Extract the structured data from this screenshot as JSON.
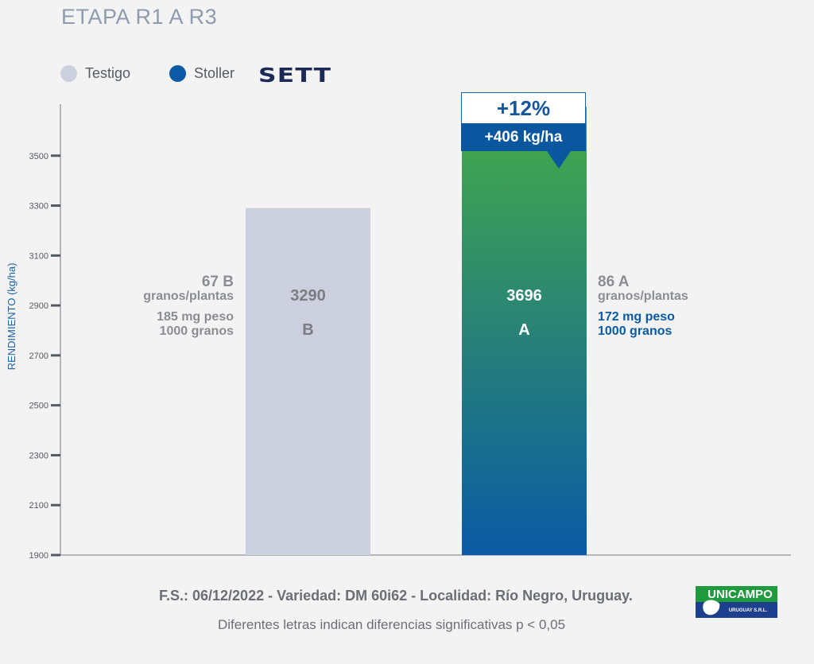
{
  "chart_data": {
    "type": "bar",
    "title": "ETAPA R1 A R3",
    "ylabel": "RENDIMIENTO (kg/ha)",
    "ylim": [
      1900,
      3700
    ],
    "yticks": [
      1900,
      2100,
      2300,
      2500,
      2700,
      2900,
      3100,
      3300,
      3500
    ],
    "yticks_labels": [
      "1900",
      "2100",
      "2300",
      "2500",
      "2700",
      "2900",
      "3100",
      "3300",
      "3500"
    ],
    "categories": [
      "Testigo",
      "Stoller"
    ],
    "series": [
      {
        "name": "Testigo",
        "color": "#ccd0de",
        "value": 3290,
        "value_label": "3290",
        "letter": "B",
        "label_color": "#7a7d83"
      },
      {
        "name": "Stoller",
        "color": "#0a5aa5",
        "gradient_top": "#46ab48",
        "gradient_bottom": "#0a5aa5",
        "value": 3696,
        "value_label": "3696",
        "letter": "A",
        "label_color": "#ffffff"
      }
    ],
    "grid": false,
    "legend_position": "top-left"
  },
  "legend": {
    "items": [
      {
        "label": "Testigo",
        "color": "#ccd0de"
      },
      {
        "label": "Stoller",
        "color": "#0a5aa5"
      }
    ],
    "brand": "SETT"
  },
  "annotations": {
    "left": {
      "count": "67 B",
      "count_unit": "granos/plantas",
      "weight": "185 mg peso",
      "weight_unit": "1000 granos"
    },
    "right": {
      "count": "86 A",
      "count_unit": "granos/plantas",
      "weight": "172 mg peso",
      "weight_unit": "1000 granos",
      "weight_color": "#0a5aa5"
    },
    "callout": {
      "percent": "+12%",
      "kg": "+406 kg/ha"
    }
  },
  "footer": {
    "line1": "F.S.: 06/12/2022 - Variedad: DM 60i62 - Localidad: Río Negro, Uruguay.",
    "line2": "Diferentes letras indican diferencias significativas p < 0,05"
  },
  "logo": {
    "name": "UNICAMPO",
    "sub": "URUGUAY S.R.L."
  }
}
